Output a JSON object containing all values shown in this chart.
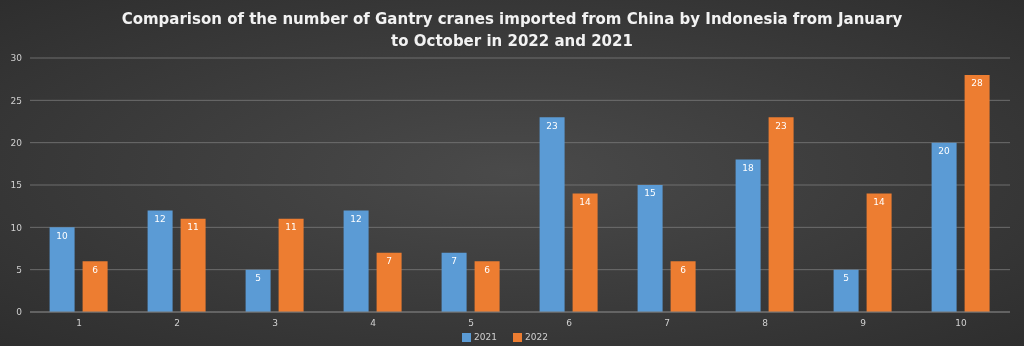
{
  "chart_data": {
    "type": "bar",
    "title": "Comparison of the number of Gantry cranes imported from China by Indonesia from January to October in 2022 and 2021",
    "categories": [
      "1",
      "2",
      "3",
      "4",
      "5",
      "6",
      "7",
      "8",
      "9",
      "10"
    ],
    "series": [
      {
        "name": "2021",
        "color": "#5b9bd5",
        "values": [
          10,
          12,
          5,
          12,
          7,
          23,
          15,
          18,
          5,
          20
        ]
      },
      {
        "name": "2022",
        "color": "#ed7d31",
        "values": [
          6,
          11,
          11,
          7,
          6,
          14,
          6,
          23,
          14,
          28
        ]
      }
    ],
    "ylim": [
      0,
      30
    ],
    "yticks": [
      0,
      5,
      10,
      15,
      20,
      25,
      30
    ],
    "grid": "y",
    "legend": "bottom",
    "data_labels": true
  }
}
